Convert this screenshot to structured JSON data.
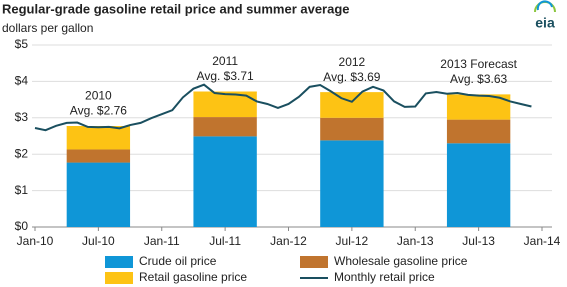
{
  "chart_data": {
    "type": "bar",
    "stacked": true,
    "title": "Regular-grade gasoline retail price and summer average",
    "subtitle": "dollars per gallon",
    "logo": "eia",
    "grid": true,
    "ylim": [
      0,
      5
    ],
    "yticks": [
      {
        "value": 0,
        "label": "$0"
      },
      {
        "value": 1,
        "label": "$1"
      },
      {
        "value": 2,
        "label": "$2"
      },
      {
        "value": 3,
        "label": "$3"
      },
      {
        "value": 4,
        "label": "$4"
      },
      {
        "value": 5,
        "label": "$5"
      }
    ],
    "xlim": [
      "2010-01",
      "2014-01"
    ],
    "xticks": [
      {
        "value": "2010-01",
        "label": "Jan-10"
      },
      {
        "value": "2010-07",
        "label": "Jul-10"
      },
      {
        "value": "2011-01",
        "label": "Jan-11"
      },
      {
        "value": "2011-07",
        "label": "Jul-11"
      },
      {
        "value": "2012-01",
        "label": "Jan-12"
      },
      {
        "value": "2012-07",
        "label": "Jul-12"
      },
      {
        "value": "2013-01",
        "label": "Jan-13"
      },
      {
        "value": "2013-07",
        "label": "Jul-13"
      },
      {
        "value": "2014-01",
        "label": "Jan-14"
      }
    ],
    "categories": [
      "2010",
      "2011",
      "2012",
      "2013 Forecast"
    ],
    "x_start": [
      "2010-04",
      "2011-04",
      "2012-04",
      "2013-04"
    ],
    "x_end": [
      "2010-09",
      "2011-09",
      "2012-09",
      "2013-09"
    ],
    "averages": {
      "values": [
        2.76,
        3.71,
        3.69,
        3.63
      ],
      "value_labels": [
        "Avg. $2.76",
        "Avg. $3.71",
        "Avg. $3.69",
        "Avg. $3.63"
      ]
    },
    "series": [
      {
        "name": "Crude oil price",
        "color": "#0f96d7",
        "values": [
          1.77,
          2.49,
          2.38,
          2.3
        ]
      },
      {
        "name": "Wholesale gasoline price",
        "color": "#c0742e",
        "values": [
          0.36,
          0.53,
          0.62,
          0.65
        ]
      },
      {
        "name": "Retail gasoline price",
        "color": "#fdc314",
        "values": [
          0.63,
          0.69,
          0.69,
          0.68
        ]
      }
    ],
    "line": {
      "name": "Monthly retail price",
      "color": "#1a4f5f",
      "x": [
        "2010-01",
        "2010-02",
        "2010-03",
        "2010-04",
        "2010-05",
        "2010-06",
        "2010-07",
        "2010-08",
        "2010-09",
        "2010-10",
        "2010-11",
        "2010-12",
        "2011-01",
        "2011-02",
        "2011-03",
        "2011-04",
        "2011-05",
        "2011-06",
        "2011-07",
        "2011-08",
        "2011-09",
        "2011-10",
        "2011-11",
        "2011-12",
        "2012-01",
        "2012-02",
        "2012-03",
        "2012-04",
        "2012-05",
        "2012-06",
        "2012-07",
        "2012-08",
        "2012-09",
        "2012-10",
        "2012-11",
        "2012-12",
        "2013-01",
        "2013-02",
        "2013-03",
        "2013-04",
        "2013-05",
        "2013-06",
        "2013-07",
        "2013-08",
        "2013-09",
        "2013-10",
        "2013-11",
        "2013-12"
      ],
      "values": [
        2.72,
        2.66,
        2.78,
        2.86,
        2.87,
        2.75,
        2.74,
        2.75,
        2.71,
        2.8,
        2.86,
        2.99,
        3.1,
        3.21,
        3.56,
        3.8,
        3.91,
        3.68,
        3.65,
        3.64,
        3.61,
        3.45,
        3.38,
        3.27,
        3.38,
        3.58,
        3.85,
        3.9,
        3.73,
        3.54,
        3.44,
        3.72,
        3.85,
        3.75,
        3.45,
        3.3,
        3.31,
        3.67,
        3.71,
        3.66,
        3.68,
        3.63,
        3.61,
        3.6,
        3.55,
        3.45,
        3.38,
        3.31
      ]
    }
  }
}
